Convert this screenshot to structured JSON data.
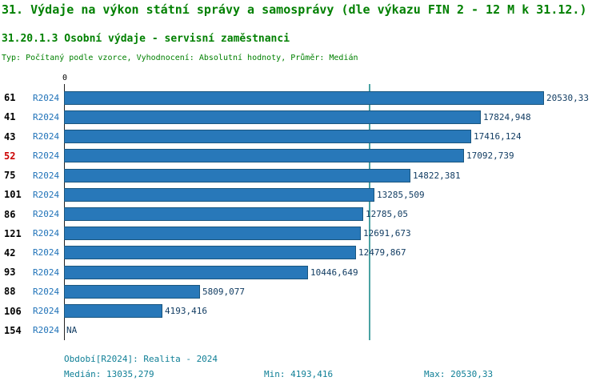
{
  "header": {
    "title": "31. Výdaje na výkon státní správy a samosprávy (dle výkazu FIN 2 - 12 M k 31.12.)",
    "subtitle": "31.20.1.3 Osobní výdaje - servisní zaměstnanci",
    "meta": "Typ: Počítaný podle vzorce, Vyhodnocení: Absolutní hodnoty, Průměr: Medián"
  },
  "chart_data": {
    "type": "bar",
    "orientation": "horizontal",
    "axis_zero_label": "0",
    "series_name": "R2024",
    "categories": [
      "61",
      "41",
      "43",
      "52",
      "75",
      "101",
      "86",
      "121",
      "42",
      "93",
      "88",
      "106",
      "154"
    ],
    "values": [
      20530.33,
      17824.948,
      17416.124,
      17092.739,
      14822.381,
      13285.509,
      12785.05,
      12691.673,
      12479.867,
      10446.649,
      5809.077,
      4193.416,
      null
    ],
    "value_labels": [
      "20530,33",
      "17824,948",
      "17416,124",
      "17092,739",
      "14822,381",
      "13285,509",
      "12785,05",
      "12691,673",
      "12479,867",
      "10446,649",
      "5809,077",
      "4193,416",
      "NA"
    ],
    "na_label": "NA",
    "highlighted_category": "52",
    "median_value": 13035.279,
    "xlim": [
      0,
      20530.33
    ],
    "grid": false,
    "legend": false,
    "colors": {
      "bar": "#2878b9",
      "bar_border": "#1a567f",
      "series_label": "#1f72b8",
      "value_label": "#123d63",
      "category": "#000000",
      "category_highlight": "#cc0000",
      "median_line": "#4aa3a3",
      "title_green": "#008000",
      "footer_teal": "#0f7f96"
    }
  },
  "footer": {
    "period": "Období[R2024]: Realita - 2024",
    "median": "Medián: 13035,279",
    "min": "Min: 4193,416",
    "max": "Max: 20530,33"
  }
}
